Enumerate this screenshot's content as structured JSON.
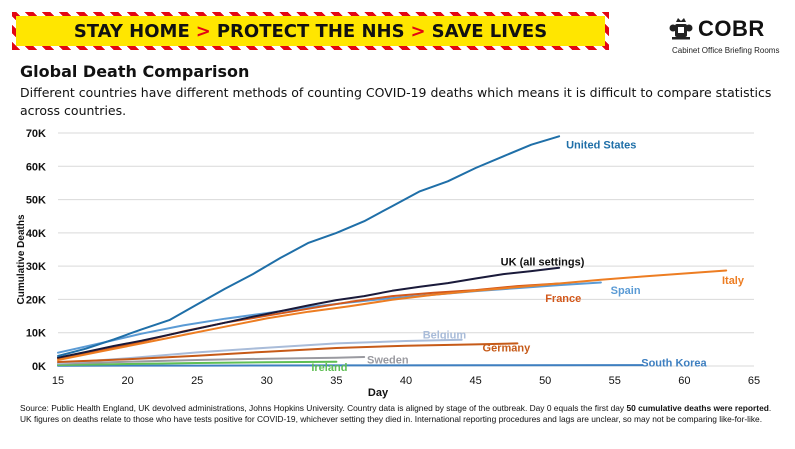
{
  "banner": {
    "part1": "STAY HOME",
    "part2": "PROTECT THE NHS",
    "part3": "SAVE LIVES",
    "chevron": ">"
  },
  "logo": {
    "wordmark": "COBR",
    "subtitle": "Cabinet Office Briefing Rooms"
  },
  "title": "Global Death Comparison",
  "subtitle": "Different countries have different methods of counting COVID-19 deaths which means it is difficult to compare statistics across countries.",
  "source": {
    "text1": "Source: Public Health England, UK devolved administrations, Johns Hopkins University. Country data is aligned by stage of the outbreak. Day 0 equals the first day ",
    "bold": "50 cumulative deaths were reported",
    "text2": ". UK figures on deaths relate to those who have tests positive for COVID-19, whichever setting they died in. International reporting procedures and lags are unclear, so may not be comparing like-for-like."
  },
  "chart_data": {
    "type": "line",
    "title": "",
    "xlabel": "Day",
    "ylabel": "Cumulative Deaths",
    "xlim": [
      15,
      65
    ],
    "ylim": [
      0,
      70000
    ],
    "x_ticks": [
      15,
      20,
      25,
      30,
      35,
      40,
      45,
      50,
      55,
      60,
      65
    ],
    "y_ticks": [
      0,
      10000,
      20000,
      30000,
      40000,
      50000,
      60000,
      70000
    ],
    "y_tick_labels": [
      "0K",
      "10K",
      "20K",
      "30K",
      "40K",
      "50K",
      "60K",
      "70K"
    ],
    "grid": "horizontal",
    "series": [
      {
        "name": "United States",
        "color": "#1f6fa8",
        "bold": true,
        "x": [
          15,
          17,
          19,
          21,
          23,
          25,
          27,
          29,
          31,
          33,
          35,
          37,
          39,
          41,
          43,
          45,
          47,
          49,
          51
        ],
        "y": [
          3000,
          5200,
          8000,
          11000,
          13800,
          18500,
          23200,
          27600,
          32500,
          37000,
          40000,
          43500,
          48000,
          52500,
          55500,
          59500,
          63000,
          66500,
          69000
        ]
      },
      {
        "name": "UK (all settings)",
        "color": "#1a1a3a",
        "bold": true,
        "x": [
          15,
          17,
          19,
          21,
          23,
          25,
          27,
          29,
          31,
          33,
          35,
          37,
          39,
          41,
          43,
          45,
          47,
          49,
          51
        ],
        "y": [
          2500,
          4200,
          6000,
          7600,
          9400,
          11200,
          13000,
          14800,
          16500,
          18200,
          19800,
          21000,
          22600,
          23800,
          24900,
          26300,
          27600,
          28500,
          29500
        ]
      },
      {
        "name": "Italy",
        "color": "#ed7d22",
        "bold": true,
        "x": [
          15,
          18,
          21,
          24,
          27,
          30,
          33,
          36,
          39,
          42,
          45,
          48,
          51,
          54,
          57,
          60,
          63
        ],
        "y": [
          1800,
          4300,
          6800,
          9300,
          11800,
          14300,
          16300,
          18000,
          19900,
          21400,
          22600,
          23700,
          24800,
          25900,
          26900,
          27800,
          28700
        ]
      },
      {
        "name": "France",
        "color": "#d2581b",
        "bold": true,
        "x": [
          15,
          18,
          21,
          24,
          27,
          30,
          33,
          36,
          39,
          42,
          45,
          48,
          51
        ],
        "y": [
          2300,
          4500,
          7300,
          10400,
          13000,
          15100,
          17200,
          19300,
          21000,
          22000,
          22800,
          24000,
          24800
        ]
      },
      {
        "name": "Spain",
        "color": "#5b9bd5",
        "bold": true,
        "x": [
          15,
          18,
          21,
          24,
          27,
          30,
          33,
          36,
          39,
          42,
          45,
          48,
          51,
          54
        ],
        "y": [
          4000,
          6800,
          9700,
          12200,
          14200,
          15900,
          17700,
          19100,
          20400,
          21400,
          22500,
          23400,
          24300,
          25100
        ]
      },
      {
        "name": "Belgium",
        "color": "#a9bcd9",
        "bold": true,
        "x": [
          15,
          20,
          25,
          30,
          35,
          40,
          44
        ],
        "y": [
          800,
          2300,
          4100,
          5500,
          6800,
          7500,
          7900
        ]
      },
      {
        "name": "Germany",
        "color": "#c65a18",
        "bold": true,
        "x": [
          15,
          20,
          25,
          30,
          35,
          40,
          45,
          48
        ],
        "y": [
          1200,
          2000,
          3100,
          4300,
          5400,
          6100,
          6500,
          6800
        ]
      },
      {
        "name": "Sweden",
        "color": "#9a9aa0",
        "bold": true,
        "x": [
          15,
          20,
          25,
          30,
          35,
          37
        ],
        "y": [
          700,
          1300,
          1800,
          2200,
          2500,
          2700
        ]
      },
      {
        "name": "Ireland",
        "color": "#5fbf54",
        "bold": true,
        "x": [
          15,
          20,
          25,
          30,
          35
        ],
        "y": [
          300,
          600,
          900,
          1100,
          1300
        ]
      },
      {
        "name": "South Korea",
        "color": "#3e7fc0",
        "bold": true,
        "x": [
          15,
          25,
          35,
          45,
          57
        ],
        "y": [
          80,
          120,
          170,
          220,
          260
        ]
      }
    ],
    "labels": [
      {
        "text": "United States",
        "series": "United States",
        "x": 51.5,
        "y": 66500,
        "anchor": "start"
      },
      {
        "text": "UK (all settings)",
        "series": "UK (all settings)",
        "x": 46.8,
        "y": 31400,
        "anchor": "start"
      },
      {
        "text": "Italy",
        "series": "Italy",
        "x": 62.7,
        "y": 25800,
        "anchor": "start"
      },
      {
        "text": "France",
        "series": "France",
        "x": 50,
        "y": 20400,
        "anchor": "start"
      },
      {
        "text": "Spain",
        "series": "Spain",
        "x": 54.7,
        "y": 22900,
        "anchor": "start"
      },
      {
        "text": "Belgium",
        "series": "Belgium",
        "x": 41.2,
        "y": 9500,
        "anchor": "start"
      },
      {
        "text": "Germany",
        "series": "Germany",
        "x": 45.5,
        "y": 5500,
        "anchor": "start"
      },
      {
        "text": "Sweden",
        "series": "Sweden",
        "x": 37.2,
        "y": 1900,
        "anchor": "start"
      },
      {
        "text": "Ireland",
        "series": "Ireland",
        "x": 33.2,
        "y": -300,
        "anchor": "start"
      },
      {
        "text": "South Korea",
        "series": "South Korea",
        "x": 56.9,
        "y": 1000,
        "anchor": "start"
      }
    ]
  }
}
